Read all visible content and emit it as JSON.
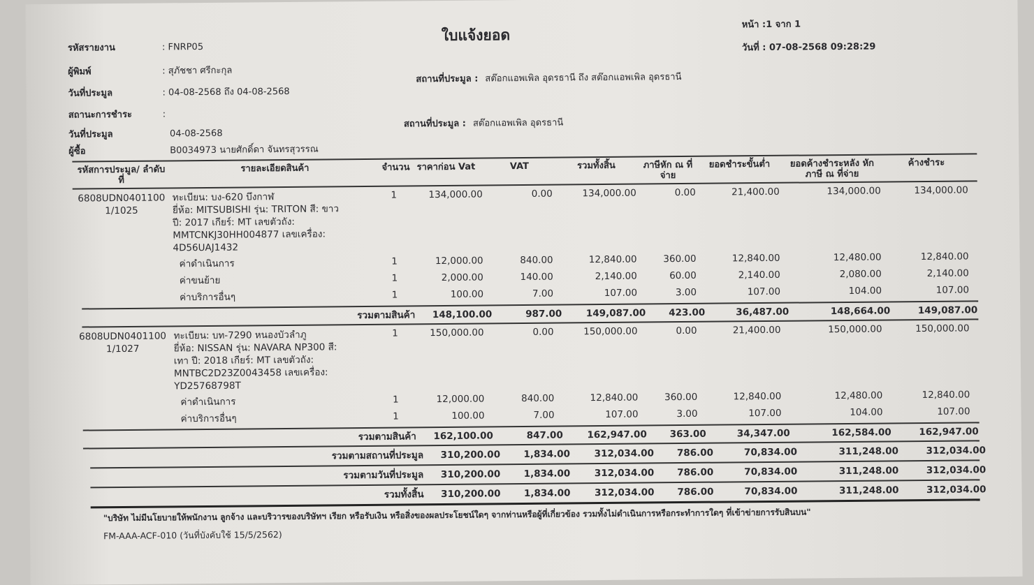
{
  "header": {
    "title": "ใบแจ้งยอด",
    "report_code_label": "รหัสรายงาน",
    "report_code": ": FNRP05",
    "printer_label": "ผู้พิมพ์",
    "printer": ": สุภัชชา ศรีกะกุล",
    "auction_date_range_label": "วันที่ประมูล",
    "auction_date_range": ": 04-08-2568 ถึง 04-08-2568",
    "payment_status_label": "สถานะการชำระ",
    "payment_status": ":",
    "auction_date_label": "วันที่ประมูล",
    "auction_date": "04-08-2568",
    "buyer_label": "ผู้ซื้อ",
    "buyer": "B0034973 นายศักดิ์ดา จันทรสุวรรณ",
    "page": "หน้า :1 จาก 1",
    "print_date": "วันที่ : 07-08-2568 09:28:29",
    "location_range_label": "สถานที่ประมูล :",
    "location_range": "สต๊อกแอพเพิล อุดรธานี ถึง สต๊อกแอพเพิล อุดรธานี",
    "location_label": "สถานที่ประมูล :",
    "location": "สต๊อกแอพเพิล อุดรธานี"
  },
  "table": {
    "columns": [
      "รหัสการประมูล/ ลำดับที่",
      "รายละเอียดสินค้า",
      "จำนวน",
      "ราคาก่อน Vat",
      "VAT",
      "รวมทั้งสิ้น",
      "ภาษีหัก ณ ที่จ่าย",
      "ยอดชำระขั้นต่ำ",
      "ยอดค้างชำระหลัง หักภาษี ณ ที่จ่าย",
      "ค้างชำระ"
    ],
    "items": [
      {
        "code": [
          "6808UDN0401100",
          "1/1025"
        ],
        "description": [
          "ทะเบียน: บง-620 บึงกาฬ",
          "ยี่ห้อ: MITSUBISHI รุ่น: TRITON  สี: ขาว",
          "ปี: 2017 เกียร์: MT เลขตัวถัง:",
          "MMTCNKJ30HH004877 เลขเครื่อง:",
          "4D56UAJ1432"
        ],
        "values": [
          "1",
          "134,000.00",
          "0.00",
          "134,000.00",
          "0.00",
          "21,400.00",
          "134,000.00",
          "134,000.00"
        ],
        "fees": [
          {
            "name": "ค่าดำเนินการ",
            "values": [
              "1",
              "12,000.00",
              "840.00",
              "12,840.00",
              "360.00",
              "12,840.00",
              "12,480.00",
              "12,840.00"
            ]
          },
          {
            "name": "ค่าขนย้าย",
            "values": [
              "1",
              "2,000.00",
              "140.00",
              "2,140.00",
              "60.00",
              "2,140.00",
              "2,080.00",
              "2,140.00"
            ]
          },
          {
            "name": "ค่าบริการอื่นๆ",
            "values": [
              "1",
              "100.00",
              "7.00",
              "107.00",
              "3.00",
              "107.00",
              "104.00",
              "107.00"
            ]
          }
        ],
        "subtotal": {
          "label": "รวมตามสินค้า",
          "values": [
            "148,100.00",
            "987.00",
            "149,087.00",
            "423.00",
            "36,487.00",
            "148,664.00",
            "149,087.00"
          ]
        }
      },
      {
        "code": [
          "6808UDN0401100",
          "1/1027"
        ],
        "description": [
          "ทะเบียน: บท-7290 หนองบัวลำภู",
          "ยี่ห้อ: NISSAN รุ่น: NAVARA NP300  สี:",
          "เทา ปี: 2018 เกียร์: MT เลขตัวถัง:",
          "MNTBC2D23Z0043458 เลขเครื่อง:",
          "YD25768798T"
        ],
        "values": [
          "1",
          "150,000.00",
          "0.00",
          "150,000.00",
          "0.00",
          "21,400.00",
          "150,000.00",
          "150,000.00"
        ],
        "fees": [
          {
            "name": "ค่าดำเนินการ",
            "values": [
              "1",
              "12,000.00",
              "840.00",
              "12,840.00",
              "360.00",
              "12,840.00",
              "12,480.00",
              "12,840.00"
            ]
          },
          {
            "name": "ค่าบริการอื่นๆ",
            "values": [
              "1",
              "100.00",
              "7.00",
              "107.00",
              "3.00",
              "107.00",
              "104.00",
              "107.00"
            ]
          }
        ],
        "subtotal": {
          "label": "รวมตามสินค้า",
          "values": [
            "162,100.00",
            "847.00",
            "162,947.00",
            "363.00",
            "34,347.00",
            "162,584.00",
            "162,947.00"
          ]
        }
      }
    ],
    "totals": [
      {
        "label": "รวมตามสถานที่ประมูล",
        "values": [
          "310,200.00",
          "1,834.00",
          "312,034.00",
          "786.00",
          "70,834.00",
          "311,248.00",
          "312,034.00"
        ]
      },
      {
        "label": "รวมตามวันที่ประมูล",
        "values": [
          "310,200.00",
          "1,834.00",
          "312,034.00",
          "786.00",
          "70,834.00",
          "311,248.00",
          "312,034.00"
        ]
      },
      {
        "label": "รวมทั้งสิ้น",
        "values": [
          "310,200.00",
          "1,834.00",
          "312,034.00",
          "786.00",
          "70,834.00",
          "311,248.00",
          "312,034.00"
        ]
      }
    ]
  },
  "footer": {
    "notice": "\"บริษัท ไม่มีนโยบายให้พนักงาน ลูกจ้าง และบริวารของบริษัทฯ เรียก หรือรับเงิน หรือสิ่งของผลประโยชน์ใดๆ จากท่านหรือผู้ที่เกี่ยวข้อง รวมทั้งไม่ดำเนินการหรือกระทำการใดๆ ที่เข้าข่ายการรับสินบน\"",
    "form_code": "FM-AAA-ACF-010 (วันที่บังคับใช้ 15/5/2562)"
  }
}
